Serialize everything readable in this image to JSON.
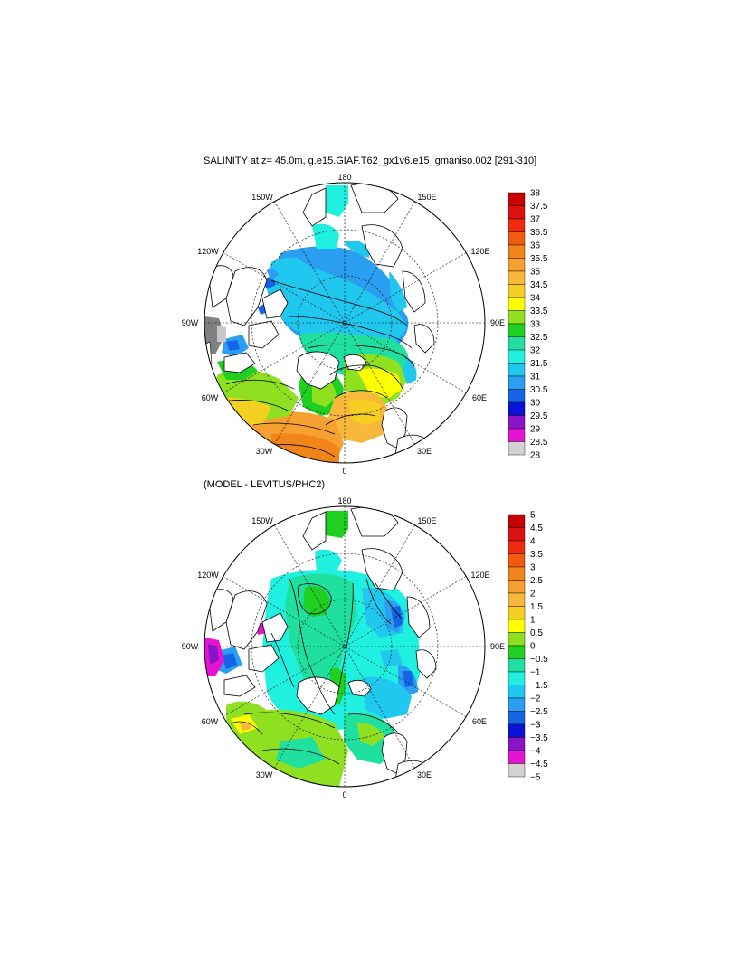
{
  "panels": [
    {
      "id": "salinity",
      "title": "SALINITY at z=  45.0m, g.e15.GIAF.T62_gx1v6.e15_gmaniso.002 [291-310]",
      "lon_labels": [
        "180",
        "150E",
        "120E",
        "90E",
        "60E",
        "30E",
        "0",
        "30W",
        "60W",
        "90W",
        "120W",
        "150W"
      ],
      "colorbar": {
        "labels": [
          "38",
          "37.5",
          "37",
          "36.5",
          "36",
          "35.5",
          "35",
          "34.5",
          "34",
          "33.5",
          "33",
          "32.5",
          "32",
          "31.5",
          "31",
          "30.5",
          "30",
          "29.5",
          "29",
          "28.5",
          "28"
        ],
        "colors": [
          "#c80000",
          "#dd1010",
          "#f02a10",
          "#f25a10",
          "#f2851a",
          "#f5a030",
          "#f7b83c",
          "#f5d020",
          "#ffff00",
          "#8ee020",
          "#20d020",
          "#20e0a0",
          "#20f0e0",
          "#20c8f0",
          "#2a9ef0",
          "#1464e6",
          "#0a14d8",
          "#8c14c8",
          "#e614d2",
          "#d2d2d2"
        ]
      }
    },
    {
      "id": "difference",
      "title": "(MODEL - LEVITUS/PHC2)",
      "lon_labels": [
        "180",
        "150E",
        "120E",
        "90E",
        "60E",
        "30E",
        "0",
        "30W",
        "60W",
        "90W",
        "120W",
        "150W"
      ],
      "colorbar": {
        "labels": [
          "5",
          "4.5",
          "4",
          "3.5",
          "3",
          "2.5",
          "2",
          "1.5",
          "1",
          "0.5",
          "0",
          "−0.5",
          "−1",
          "−1.5",
          "−2",
          "−2.5",
          "−3",
          "−3.5",
          "−4",
          "−4.5",
          "−5"
        ],
        "colors": [
          "#c80000",
          "#dd1010",
          "#f02a10",
          "#f25a10",
          "#f2851a",
          "#f5a030",
          "#f7b83c",
          "#f5d020",
          "#ffff00",
          "#8ee020",
          "#20d020",
          "#20e0a0",
          "#20f0e0",
          "#20c8f0",
          "#2a9ef0",
          "#1464e6",
          "#0a14d8",
          "#8c14c8",
          "#e614d2",
          "#d2d2d2"
        ]
      }
    }
  ]
}
